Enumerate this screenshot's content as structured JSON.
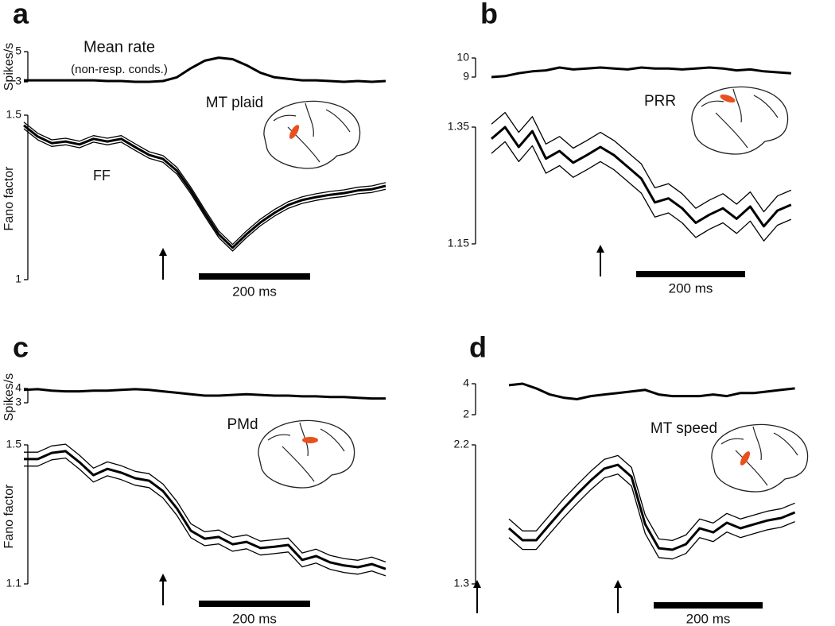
{
  "chart_data": [
    {
      "type": "line",
      "panel": "a",
      "title": "MT plaid",
      "annotations": [
        "Mean rate",
        "(non-resp. conds.)",
        "FF"
      ],
      "color": "#000000",
      "stimulus_onset": 0,
      "scale_bar": {
        "value": 200,
        "label": "200 ms"
      },
      "x": [
        -250,
        -225,
        -200,
        -175,
        -150,
        -125,
        -100,
        -75,
        -50,
        -25,
        0,
        25,
        50,
        75,
        100,
        125,
        150,
        175,
        200,
        225,
        250,
        275,
        300,
        325,
        350,
        375,
        400
      ],
      "rate": {
        "ylabel": "Spikes/s",
        "ylim": [
          3,
          5
        ],
        "yticks": [
          3,
          5
        ],
        "values": [
          3.1,
          3.1,
          3.1,
          3.1,
          3.1,
          3.1,
          3.05,
          3.05,
          3.0,
          3.0,
          3.05,
          3.3,
          3.9,
          4.4,
          4.6,
          4.5,
          4.1,
          3.6,
          3.3,
          3.2,
          3.1,
          3.1,
          3.05,
          3.0,
          3.05,
          3.0,
          3.05
        ]
      },
      "ff": {
        "ylabel": "Fano factor",
        "ylim": [
          1,
          1.5
        ],
        "yticks": [
          1,
          1.5
        ],
        "series": [
          {
            "width": 3,
            "values": [
              1.469,
              1.435,
              1.415,
              1.42,
              1.411,
              1.428,
              1.42,
              1.428,
              1.403,
              1.379,
              1.367,
              1.331,
              1.271,
              1.203,
              1.138,
              1.097,
              1.138,
              1.174,
              1.203,
              1.227,
              1.242,
              1.251,
              1.258,
              1.263,
              1.271,
              1.275,
              1.285
            ]
          },
          {
            "width": 1.3,
            "values": [
              1.479,
              1.445,
              1.425,
              1.43,
              1.421,
              1.438,
              1.43,
              1.438,
              1.413,
              1.389,
              1.377,
              1.341,
              1.281,
              1.213,
              1.148,
              1.107,
              1.148,
              1.184,
              1.213,
              1.237,
              1.252,
              1.261,
              1.268,
              1.273,
              1.281,
              1.285,
              1.295
            ]
          },
          {
            "width": 1.3,
            "values": [
              1.459,
              1.425,
              1.405,
              1.41,
              1.401,
              1.418,
              1.41,
              1.418,
              1.393,
              1.369,
              1.357,
              1.321,
              1.261,
              1.193,
              1.128,
              1.087,
              1.128,
              1.164,
              1.193,
              1.217,
              1.232,
              1.241,
              1.248,
              1.253,
              1.261,
              1.265,
              1.275
            ]
          }
        ]
      }
    },
    {
      "type": "line",
      "panel": "b",
      "title": "PRR",
      "color": "#000000",
      "stimulus_onset": 0,
      "scale_bar": {
        "value": 200,
        "label": "200 ms"
      },
      "x": [
        -200,
        -175,
        -150,
        -125,
        -100,
        -75,
        -50,
        -25,
        0,
        25,
        50,
        75,
        100,
        125,
        150,
        175,
        200,
        225,
        250,
        275,
        300,
        325,
        350
      ],
      "rate": {
        "ylim": [
          9,
          10
        ],
        "yticks": [
          9,
          10
        ],
        "values": [
          9.0,
          9.05,
          9.2,
          9.3,
          9.35,
          9.5,
          9.4,
          9.45,
          9.5,
          9.45,
          9.4,
          9.5,
          9.45,
          9.45,
          9.4,
          9.45,
          9.5,
          9.45,
          9.35,
          9.4,
          9.3,
          9.25,
          9.2
        ]
      },
      "ff": {
        "ylim": [
          1.15,
          1.35
        ],
        "yticks": [
          1.15,
          1.35
        ],
        "series": [
          {
            "width": 3,
            "values": [
              1.33,
              1.35,
              1.316,
              1.343,
              1.296,
              1.309,
              1.289,
              1.302,
              1.316,
              1.302,
              1.282,
              1.262,
              1.221,
              1.228,
              1.211,
              1.186,
              1.2,
              1.211,
              1.193,
              1.214,
              1.18,
              1.207,
              1.217
            ]
          },
          {
            "width": 1.3,
            "values": [
              1.355,
              1.375,
              1.341,
              1.368,
              1.321,
              1.334,
              1.314,
              1.327,
              1.341,
              1.327,
              1.307,
              1.287,
              1.246,
              1.253,
              1.236,
              1.211,
              1.225,
              1.236,
              1.218,
              1.239,
              1.205,
              1.232,
              1.242
            ]
          },
          {
            "width": 1.3,
            "values": [
              1.305,
              1.325,
              1.291,
              1.318,
              1.271,
              1.284,
              1.264,
              1.277,
              1.291,
              1.277,
              1.257,
              1.237,
              1.196,
              1.203,
              1.186,
              1.161,
              1.175,
              1.186,
              1.168,
              1.189,
              1.155,
              1.182,
              1.192
            ]
          }
        ]
      }
    },
    {
      "type": "line",
      "panel": "c",
      "title": "PMd",
      "color": "#000000",
      "stimulus_onset": 0,
      "scale_bar": {
        "value": 200,
        "label": "200 ms"
      },
      "x": [
        -250,
        -225,
        -200,
        -175,
        -150,
        -125,
        -100,
        -75,
        -50,
        -25,
        0,
        25,
        50,
        75,
        100,
        125,
        150,
        175,
        200,
        225,
        250,
        275,
        300,
        325,
        350,
        375,
        400
      ],
      "rate": {
        "ylabel": "Spikes/s",
        "ylim": [
          3,
          4
        ],
        "yticks": [
          3,
          4
        ],
        "values": [
          3.9,
          3.95,
          3.85,
          3.8,
          3.8,
          3.85,
          3.85,
          3.9,
          3.95,
          3.9,
          3.8,
          3.7,
          3.6,
          3.5,
          3.5,
          3.55,
          3.6,
          3.55,
          3.5,
          3.5,
          3.45,
          3.45,
          3.4,
          3.4,
          3.35,
          3.3,
          3.3
        ]
      },
      "ff": {
        "ylabel": "Fano factor",
        "ylim": [
          1.1,
          1.5
        ],
        "yticks": [
          1.1,
          1.5
        ],
        "series": [
          {
            "width": 3,
            "values": [
              1.459,
              1.459,
              1.477,
              1.482,
              1.45,
              1.413,
              1.431,
              1.42,
              1.404,
              1.397,
              1.367,
              1.317,
              1.253,
              1.23,
              1.235,
              1.214,
              1.221,
              1.203,
              1.207,
              1.212,
              1.169,
              1.18,
              1.162,
              1.153,
              1.148,
              1.157,
              1.143
            ]
          },
          {
            "width": 1.3,
            "values": [
              1.479,
              1.479,
              1.497,
              1.502,
              1.47,
              1.433,
              1.451,
              1.44,
              1.424,
              1.417,
              1.387,
              1.337,
              1.273,
              1.25,
              1.255,
              1.234,
              1.241,
              1.223,
              1.227,
              1.232,
              1.189,
              1.2,
              1.182,
              1.173,
              1.168,
              1.177,
              1.163
            ]
          },
          {
            "width": 1.3,
            "values": [
              1.439,
              1.439,
              1.457,
              1.462,
              1.43,
              1.393,
              1.411,
              1.4,
              1.384,
              1.377,
              1.347,
              1.297,
              1.233,
              1.21,
              1.215,
              1.194,
              1.201,
              1.183,
              1.187,
              1.192,
              1.149,
              1.16,
              1.142,
              1.133,
              1.128,
              1.137,
              1.123
            ]
          }
        ]
      }
    },
    {
      "type": "line",
      "panel": "d",
      "title": "MT speed",
      "color": "#000000",
      "stimulus_onset": 0,
      "scale_bar": {
        "value": 200,
        "label": "200 ms"
      },
      "x": [
        -200,
        -175,
        -150,
        -125,
        -100,
        -75,
        -50,
        -25,
        0,
        25,
        50,
        75,
        100,
        125,
        150,
        175,
        200,
        225,
        250,
        275,
        300,
        325
      ],
      "rate": {
        "ylim": [
          2,
          4
        ],
        "yticks": [
          2,
          4
        ],
        "values": [
          3.9,
          4.0,
          3.7,
          3.3,
          3.1,
          3.0,
          3.2,
          3.3,
          3.4,
          3.5,
          3.6,
          3.3,
          3.2,
          3.2,
          3.2,
          3.3,
          3.2,
          3.4,
          3.4,
          3.5,
          3.6,
          3.7
        ]
      },
      "ff": {
        "ylim": [
          1.3,
          2.2
        ],
        "yticks": [
          1.3,
          2.2
        ],
        "series": [
          {
            "width": 3,
            "values": [
              1.66,
              1.583,
              1.583,
              1.686,
              1.788,
              1.881,
              1.969,
              2.046,
              2.071,
              1.994,
              1.686,
              1.531,
              1.521,
              1.557,
              1.66,
              1.634,
              1.696,
              1.66,
              1.686,
              1.711,
              1.727,
              1.763
            ]
          },
          {
            "width": 1.3,
            "values": [
              1.72,
              1.643,
              1.643,
              1.746,
              1.848,
              1.941,
              2.029,
              2.106,
              2.131,
              2.054,
              1.746,
              1.591,
              1.581,
              1.617,
              1.72,
              1.694,
              1.756,
              1.72,
              1.746,
              1.771,
              1.787,
              1.823
            ]
          },
          {
            "width": 1.3,
            "values": [
              1.6,
              1.523,
              1.523,
              1.626,
              1.728,
              1.821,
              1.909,
              1.986,
              2.011,
              1.934,
              1.626,
              1.471,
              1.461,
              1.497,
              1.6,
              1.574,
              1.636,
              1.6,
              1.626,
              1.651,
              1.667,
              1.703
            ]
          }
        ]
      }
    }
  ]
}
